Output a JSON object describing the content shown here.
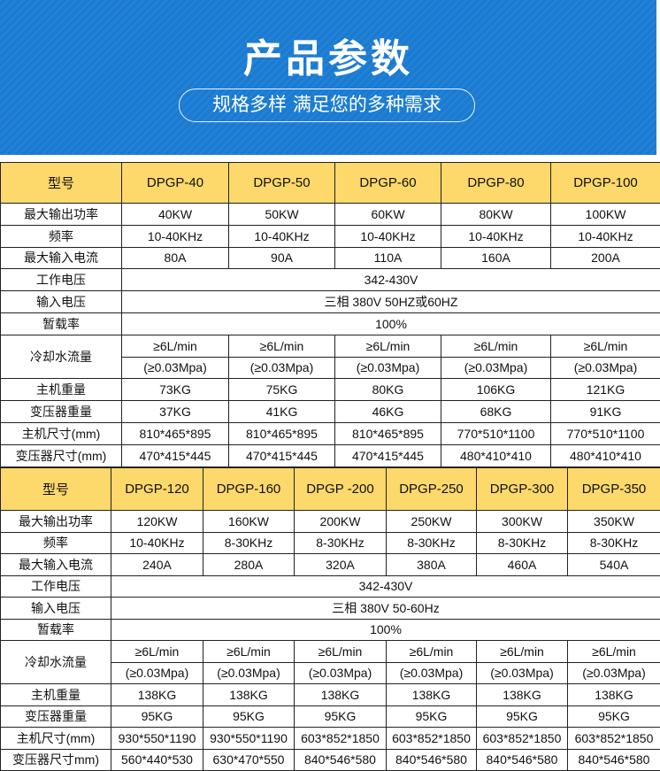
{
  "banner": {
    "title": "产品参数",
    "subtitle": "规格多样 满足您的多种需求",
    "color": "#1a7bd2"
  },
  "header_color": "#fdd86b",
  "table1": {
    "models": [
      "DPGP-40",
      "DPGP-50",
      "DPGP-60",
      "DPGP-80",
      "DPGP-100"
    ],
    "labels": {
      "model": "型号",
      "power": "最大输出功率",
      "freq": "频率",
      "current": "最大输入电流",
      "work_voltage": "工作电压",
      "input_voltage": "输入电压",
      "duty": "暂载率",
      "cooling": "冷却水流量",
      "host_weight": "主机重量",
      "trans_weight": "变压器重量",
      "host_size": "主机尺寸(mm)",
      "trans_size": "变压器尺寸(mm)"
    },
    "power": [
      "40KW",
      "50KW",
      "60KW",
      "80KW",
      "100KW"
    ],
    "freq": [
      "10-40KHz",
      "10-40KHz",
      "10-40KHz",
      "10-40KHz",
      "10-40KHz"
    ],
    "current": [
      "80A",
      "90A",
      "110A",
      "160A",
      "200A"
    ],
    "work_voltage": "342-430V",
    "input_voltage": "三相 380V 50HZ或60HZ",
    "duty": "100%",
    "cooling_flow": [
      "≥6L/min",
      "≥6L/min",
      "≥6L/min",
      "≥6L/min",
      "≥6L/min"
    ],
    "cooling_pressure": [
      "(≥0.03Mpa)",
      "(≥0.03Mpa)",
      "(≥0.03Mpa)",
      "(≥0.03Mpa)",
      "(≥0.03Mpa)"
    ],
    "host_weight": [
      "73KG",
      "75KG",
      "80KG",
      "106KG",
      "121KG"
    ],
    "trans_weight": [
      "37KG",
      "41KG",
      "46KG",
      "68KG",
      "91KG"
    ],
    "host_size": [
      "810*465*895",
      "810*465*895",
      "810*465*895",
      "770*510*1100",
      "770*510*1100"
    ],
    "trans_size": [
      "470*415*445",
      "470*415*445",
      "470*415*445",
      "480*410*410",
      "480*410*410"
    ]
  },
  "table2": {
    "models": [
      "DPGP-120",
      "DPGP-160",
      "DPGP -200",
      "DPGP-250",
      "DPGP-300",
      "DPGP-350"
    ],
    "labels": {
      "model": "型号",
      "power": "最大输出功率",
      "freq": "频率",
      "current": "最大输入电流",
      "work_voltage": "工作电压",
      "input_voltage": "输入电压",
      "duty": "暂载率",
      "cooling": "冷却水流量",
      "host_weight": "主机重量",
      "trans_weight": "变压器重量",
      "host_size": "主机尺寸(mm)",
      "trans_size": "变压器尺寸mm)"
    },
    "power": [
      "120KW",
      "160KW",
      "200KW",
      "250KW",
      "300KW",
      "350KW"
    ],
    "freq": [
      "10-40KHz",
      "8-30KHz",
      "8-30KHz",
      "8-30KHz",
      "8-30KHz",
      "8-30KHz"
    ],
    "current": [
      "240A",
      "280A",
      "320A",
      "380A",
      "460A",
      "540A"
    ],
    "work_voltage": "342-430V",
    "input_voltage": "三相 380V 50-60Hz",
    "duty": "100%",
    "cooling_flow": [
      "≥6L/min",
      "≥6L/min",
      "≥6L/min",
      "≥6L/min",
      "≥6L/min",
      "≥6L/min"
    ],
    "cooling_pressure": [
      "(≥0.03Mpa)",
      "(≥0.03Mpa)",
      "(≥0.03Mpa)",
      "(≥0.03Mpa)",
      "(≥0.03Mpa)",
      "(≥0.03Mpa)"
    ],
    "host_weight": [
      "138KG",
      "138KG",
      "138KG",
      "138KG",
      "138KG",
      "138KG"
    ],
    "trans_weight": [
      "95KG",
      "95KG",
      "95KG",
      "95KG",
      "95KG",
      "95KG"
    ],
    "host_size": [
      "930*550*1190",
      "930*550*1190",
      "603*852*1850",
      "603*852*1850",
      "603*852*1850",
      "603*852*1850"
    ],
    "trans_size": [
      "560*440*530",
      "630*470*550",
      "840*546*580",
      "840*546*580",
      "840*546*580",
      "840*546*580"
    ]
  }
}
